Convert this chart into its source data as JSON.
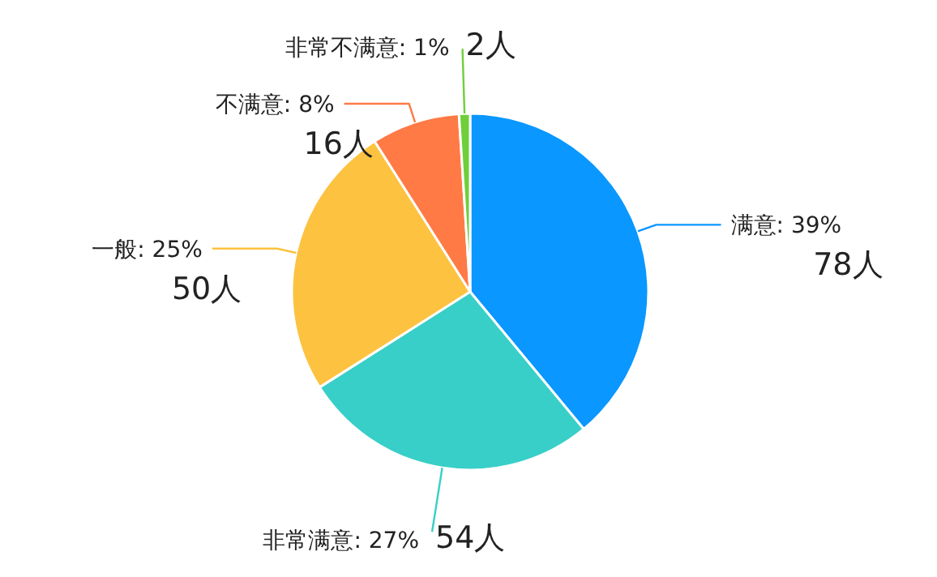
{
  "chart_data": {
    "type": "pie",
    "categories": [
      "满意: 39%",
      "非常满意: 27%",
      "一般: 25%",
      "不满意: 8%",
      "非常不满意: 1%"
    ],
    "values": [
      78,
      54,
      50,
      16,
      2
    ],
    "value_labels": [
      "78人",
      "54人",
      "50人",
      "16人",
      "2人"
    ],
    "colors": [
      "#0a97ff",
      "#38cfc8",
      "#fdc240",
      "#ff7a45",
      "#6fcf3a"
    ],
    "legend": false
  }
}
